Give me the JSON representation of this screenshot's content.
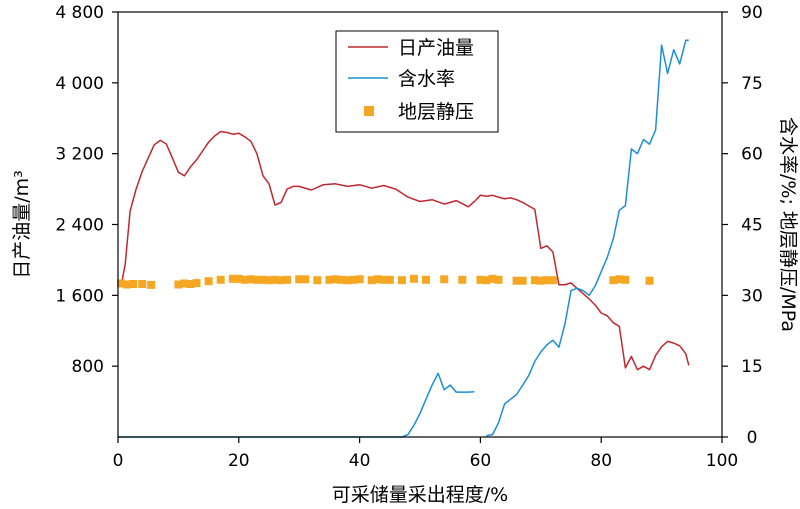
{
  "chart_data": {
    "type": "line",
    "xlabel": "可采储量采出程度/%",
    "ylabel_left": "日产油量/m³",
    "ylabel_right": "含水率/%; 地层静压/MPa",
    "xlim": [
      0,
      100
    ],
    "ylim_left": [
      0,
      4800
    ],
    "ylim_right": [
      0,
      90
    ],
    "x_ticks": [
      {
        "value": 0,
        "label": "0"
      },
      {
        "value": 20,
        "label": "20"
      },
      {
        "value": 40,
        "label": "40"
      },
      {
        "value": 60,
        "label": "60"
      },
      {
        "value": 80,
        "label": "80"
      },
      {
        "value": 100,
        "label": "100"
      }
    ],
    "y_left_ticks": [
      {
        "value": 800,
        "label": "800"
      },
      {
        "value": 1600,
        "label": "1 600"
      },
      {
        "value": 2400,
        "label": "2 400"
      },
      {
        "value": 3200,
        "label": "3 200"
      },
      {
        "value": 4000,
        "label": "4 000"
      },
      {
        "value": 4800,
        "label": "4 800"
      }
    ],
    "y_right_ticks": [
      {
        "value": 0,
        "label": "0"
      },
      {
        "value": 15,
        "label": "15"
      },
      {
        "value": 30,
        "label": "30"
      },
      {
        "value": 45,
        "label": "45"
      },
      {
        "value": 60,
        "label": "60"
      },
      {
        "value": 75,
        "label": "75"
      },
      {
        "value": 90,
        "label": "90"
      }
    ],
    "legend_position": "top-center",
    "grid": false,
    "series": [
      {
        "name": "日产油量",
        "axis": "left",
        "kind": "line",
        "color": "#c0282e",
        "x": [
          0.5,
          1.2,
          2,
          3,
          4,
          5,
          6,
          7,
          8,
          9,
          10,
          11,
          12,
          13,
          14,
          15,
          16,
          17,
          18,
          19,
          20,
          21,
          22,
          23,
          24,
          25,
          26,
          27,
          28,
          29,
          30,
          32,
          34,
          36,
          38,
          40,
          42,
          44,
          46,
          48,
          50,
          52,
          54,
          56,
          58,
          59,
          60,
          61,
          62,
          63,
          64,
          65,
          66,
          67,
          68,
          69,
          70,
          71,
          72,
          73,
          74,
          75,
          76,
          77,
          78,
          79,
          80,
          81,
          82,
          83,
          84,
          85,
          86,
          87,
          88,
          89,
          90,
          91,
          92,
          93,
          94,
          94.5
        ],
        "values": [
          1700,
          1950,
          2550,
          2800,
          3000,
          3150,
          3300,
          3350,
          3310,
          3150,
          2990,
          2950,
          3050,
          3130,
          3230,
          3330,
          3400,
          3450,
          3440,
          3420,
          3430,
          3390,
          3340,
          3200,
          2950,
          2860,
          2620,
          2650,
          2800,
          2830,
          2830,
          2790,
          2850,
          2860,
          2830,
          2850,
          2810,
          2840,
          2800,
          2710,
          2660,
          2680,
          2630,
          2670,
          2600,
          2660,
          2730,
          2720,
          2730,
          2710,
          2690,
          2700,
          2680,
          2650,
          2610,
          2570,
          2130,
          2160,
          2090,
          1720,
          1720,
          1740,
          1680,
          1620,
          1560,
          1490,
          1400,
          1370,
          1290,
          1250,
          780,
          910,
          760,
          800,
          760,
          920,
          1020,
          1080,
          1060,
          1030,
          940,
          810
        ]
      },
      {
        "name": "含水率",
        "axis": "right",
        "kind": "line",
        "color": "#1a8fd8",
        "segments": [
          {
            "x": [
              0,
              47,
              48,
              49,
              50,
              51,
              52,
              53,
              54,
              55,
              56,
              57,
              58,
              59
            ],
            "values": [
              0,
              0,
              0.5,
              2.5,
              5,
              8,
              11,
              13.5,
              10,
              11,
              9.5,
              9.5,
              9.5,
              9.6
            ]
          },
          {
            "x": [
              61,
              62,
              63,
              64,
              65,
              66,
              67,
              68,
              69,
              70,
              71,
              72,
              73,
              74,
              75,
              76,
              77,
              78,
              79,
              80,
              81,
              82,
              83,
              84,
              85,
              86,
              87,
              88,
              89,
              90,
              91,
              92,
              93,
              94,
              94.5
            ],
            "values": [
              0.3,
              0.5,
              3,
              7,
              8,
              9,
              11,
              13,
              16,
              18,
              19.5,
              20.5,
              19,
              24,
              31,
              31.5,
              31,
              30,
              32,
              35,
              38,
              42,
              48,
              49,
              61,
              60,
              63,
              62,
              65,
              83,
              77,
              82,
              79,
              84,
              84
            ]
          }
        ]
      },
      {
        "name": "地层静压",
        "axis": "right",
        "kind": "marker",
        "color": "#f5a623",
        "x": [
          0.5,
          1.5,
          2.5,
          4,
          5.5,
          10,
          11,
          12,
          13,
          15,
          17,
          19,
          20,
          21,
          22,
          23,
          24,
          25,
          26,
          27,
          28,
          30,
          31,
          33,
          35,
          36,
          37,
          38,
          39,
          40,
          42,
          43,
          44,
          45,
          47,
          49,
          51,
          54,
          57,
          60,
          61,
          62,
          63,
          66,
          67,
          69,
          70,
          71,
          72,
          82,
          83,
          84,
          88
        ],
        "values": [
          32.5,
          32.3,
          32.4,
          32.4,
          32.2,
          32.3,
          32.5,
          32.4,
          32.6,
          33,
          33.3,
          33.5,
          33.5,
          33.3,
          33.4,
          33.3,
          33.3,
          33.2,
          33.3,
          33.2,
          33.3,
          33.4,
          33.4,
          33.2,
          33.3,
          33.4,
          33.3,
          33.2,
          33.3,
          33.4,
          33.2,
          33.4,
          33.3,
          33.3,
          33.2,
          33.5,
          33.3,
          33.4,
          33.3,
          33.3,
          33.2,
          33.5,
          33.3,
          33.1,
          33.1,
          33.2,
          33.1,
          33.2,
          33.2,
          33.2,
          33.4,
          33.3,
          33.1
        ]
      }
    ]
  }
}
